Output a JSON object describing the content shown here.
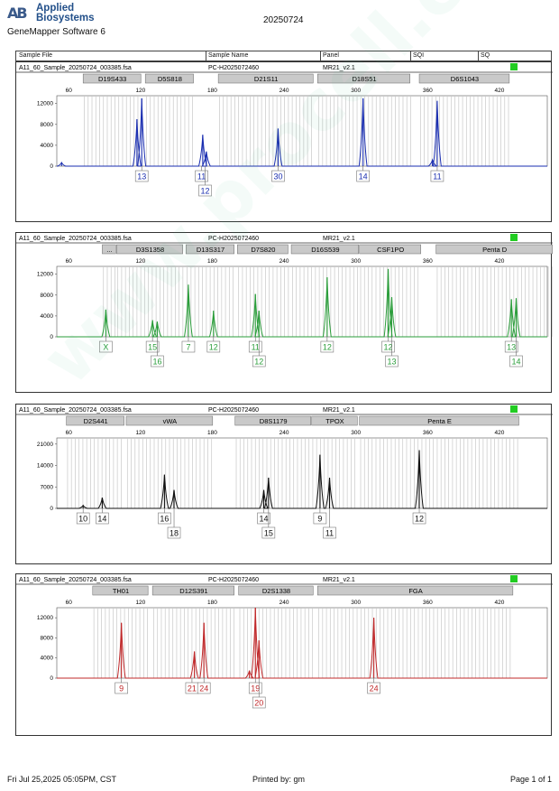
{
  "header": {
    "logo_mark": "AB",
    "logo_line1": "Applied",
    "logo_line2": "Biosystems",
    "app_name": "GeneMapper Software 6",
    "report_date": "20250724"
  },
  "columns": [
    "Sample File",
    "Sample Name",
    "Panel",
    "SQI",
    "SQ"
  ],
  "footer": {
    "timestamp": "Fri Jul 25,2025 05:05PM, CST",
    "printed_by": "Printed by: gm",
    "page": "Page 1 of 1"
  },
  "watermark": "www.procell.com.cn",
  "colors": {
    "blue": "#1a2eb0",
    "green": "#2a9d3a",
    "black": "#111111",
    "red": "#c0282a",
    "status_ok": "#22cc22"
  },
  "chart_data": [
    {
      "type": "line",
      "sample_file": "A11_60_Sample_20250724_003385.fsa",
      "sample_name": "PC-H2025072460",
      "panel": "MR21_v2.1",
      "dye": "blue",
      "x_ticks": [
        60,
        120,
        180,
        240,
        300,
        360,
        420
      ],
      "y_ticks": [
        "0",
        "4000",
        "8000",
        "12000"
      ],
      "xlim": [
        50,
        460
      ],
      "ylim": [
        0,
        13500
      ],
      "loci": [
        {
          "name": "D19S433",
          "start": 72,
          "end": 121
        },
        {
          "name": "D5S818",
          "start": 124,
          "end": 165
        },
        {
          "name": "D21S11",
          "start": 185,
          "end": 265
        },
        {
          "name": "D18S51",
          "start": 268,
          "end": 346
        },
        {
          "name": "D6S1043",
          "start": 353,
          "end": 429
        }
      ],
      "peaks": [
        {
          "x": 54,
          "h": 700
        },
        {
          "x": 117,
          "h": 9000
        },
        {
          "x": 121,
          "h": 13000
        },
        {
          "x": 172,
          "h": 6000
        },
        {
          "x": 175,
          "h": 2800
        },
        {
          "x": 235,
          "h": 7200
        },
        {
          "x": 306,
          "h": 13000
        },
        {
          "x": 368,
          "h": 12500
        },
        {
          "x": 364,
          "h": 1200
        }
      ],
      "alleles": [
        {
          "x": 121,
          "row": 1,
          "label": "13"
        },
        {
          "x": 171,
          "row": 1,
          "label": "11"
        },
        {
          "x": 174,
          "row": 2,
          "label": "12"
        },
        {
          "x": 235,
          "row": 1,
          "label": "30"
        },
        {
          "x": 306,
          "row": 1,
          "label": "14"
        },
        {
          "x": 368,
          "row": 1,
          "label": "11"
        }
      ]
    },
    {
      "type": "line",
      "sample_file": "A11_60_Sample_20250724_003385.fsa",
      "sample_name": "PC-H2025072460",
      "panel": "MR21_v2.1",
      "dye": "green",
      "x_ticks": [
        60,
        120,
        180,
        240,
        300,
        360,
        420
      ],
      "y_ticks": [
        "0",
        "4000",
        "8000",
        "12000"
      ],
      "xlim": [
        50,
        460
      ],
      "ylim": [
        0,
        13500
      ],
      "loci": [
        {
          "name": "...",
          "start": 88,
          "end": 100
        },
        {
          "name": "D3S1358",
          "start": 100,
          "end": 156
        },
        {
          "name": "D13S317",
          "start": 158,
          "end": 199
        },
        {
          "name": "D7S820",
          "start": 201,
          "end": 244
        },
        {
          "name": "D16S539",
          "start": 246,
          "end": 303
        },
        {
          "name": "CSF1PO",
          "start": 303,
          "end": 355
        },
        {
          "name": "Penta D",
          "start": 367,
          "end": 465
        }
      ],
      "peaks": [
        {
          "x": 91,
          "h": 5200
        },
        {
          "x": 130,
          "h": 3200
        },
        {
          "x": 134,
          "h": 2900
        },
        {
          "x": 160,
          "h": 10000
        },
        {
          "x": 181,
          "h": 5000
        },
        {
          "x": 216,
          "h": 8200
        },
        {
          "x": 219,
          "h": 5000
        },
        {
          "x": 276,
          "h": 11400
        },
        {
          "x": 327,
          "h": 13000
        },
        {
          "x": 330,
          "h": 7600
        },
        {
          "x": 430,
          "h": 7200
        },
        {
          "x": 434,
          "h": 7400
        }
      ],
      "alleles": [
        {
          "x": 91,
          "row": 1,
          "label": "X"
        },
        {
          "x": 130,
          "row": 1,
          "label": "15"
        },
        {
          "x": 134,
          "row": 2,
          "label": "16"
        },
        {
          "x": 160,
          "row": 1,
          "label": "7"
        },
        {
          "x": 181,
          "row": 1,
          "label": "12"
        },
        {
          "x": 216,
          "row": 1,
          "label": "11"
        },
        {
          "x": 219,
          "row": 2,
          "label": "12"
        },
        {
          "x": 276,
          "row": 1,
          "label": "12"
        },
        {
          "x": 327,
          "row": 1,
          "label": "12"
        },
        {
          "x": 330,
          "row": 2,
          "label": "13"
        },
        {
          "x": 430,
          "row": 1,
          "label": "13"
        },
        {
          "x": 434,
          "row": 2,
          "label": "14"
        }
      ]
    },
    {
      "type": "line",
      "sample_file": "A11_60_Sample_20250724_003385.fsa",
      "sample_name": "PC-H2025072460",
      "panel": "MR21_v2.1",
      "dye": "black",
      "x_ticks": [
        60,
        120,
        180,
        240,
        300,
        360,
        420
      ],
      "y_ticks": [
        "0",
        "7000",
        "14000",
        "21000"
      ],
      "xlim": [
        50,
        460
      ],
      "ylim": [
        0,
        23000
      ],
      "loci": [
        {
          "name": "D2S441",
          "start": 58,
          "end": 107
        },
        {
          "name": "vWA",
          "start": 108,
          "end": 181
        },
        {
          "name": "D8S1179",
          "start": 199,
          "end": 263
        },
        {
          "name": "TPOX",
          "start": 263,
          "end": 302
        },
        {
          "name": "Penta E",
          "start": 303,
          "end": 437
        }
      ],
      "peaks": [
        {
          "x": 72,
          "h": 1000
        },
        {
          "x": 88,
          "h": 3500
        },
        {
          "x": 140,
          "h": 11000
        },
        {
          "x": 148,
          "h": 6000
        },
        {
          "x": 223,
          "h": 6000
        },
        {
          "x": 227,
          "h": 10000
        },
        {
          "x": 270,
          "h": 17500
        },
        {
          "x": 278,
          "h": 10000
        },
        {
          "x": 353,
          "h": 19000
        }
      ],
      "alleles": [
        {
          "x": 72,
          "row": 1,
          "label": "10"
        },
        {
          "x": 88,
          "row": 1,
          "label": "14"
        },
        {
          "x": 140,
          "row": 1,
          "label": "16"
        },
        {
          "x": 148,
          "row": 2,
          "label": "18"
        },
        {
          "x": 223,
          "row": 1,
          "label": "14"
        },
        {
          "x": 227,
          "row": 2,
          "label": "15"
        },
        {
          "x": 270,
          "row": 1,
          "label": "9"
        },
        {
          "x": 278,
          "row": 2,
          "label": "11"
        },
        {
          "x": 353,
          "row": 1,
          "label": "12"
        }
      ]
    },
    {
      "type": "line",
      "sample_file": "A11_60_Sample_20250724_003385.fsa",
      "sample_name": "PC-H2025072460",
      "panel": "MR21_v2.1",
      "dye": "red",
      "x_ticks": [
        60,
        120,
        180,
        240,
        300,
        360,
        420
      ],
      "y_ticks": [
        "0",
        "4000",
        "8000",
        "12000"
      ],
      "xlim": [
        50,
        460
      ],
      "ylim": [
        0,
        14000
      ],
      "loci": [
        {
          "name": "TH01",
          "start": 80,
          "end": 127
        },
        {
          "name": "D12S391",
          "start": 130,
          "end": 199
        },
        {
          "name": "D2S1338",
          "start": 202,
          "end": 265
        },
        {
          "name": "FGA",
          "start": 268,
          "end": 432
        }
      ],
      "peaks": [
        {
          "x": 104,
          "h": 11000
        },
        {
          "x": 165,
          "h": 5300
        },
        {
          "x": 173,
          "h": 11000
        },
        {
          "x": 216,
          "h": 14000
        },
        {
          "x": 219,
          "h": 7500
        },
        {
          "x": 211,
          "h": 1500
        },
        {
          "x": 315,
          "h": 12000
        }
      ],
      "alleles": [
        {
          "x": 104,
          "row": 1,
          "label": "9"
        },
        {
          "x": 163,
          "row": 1,
          "label": "21"
        },
        {
          "x": 173,
          "row": 1,
          "label": "24"
        },
        {
          "x": 216,
          "row": 1,
          "label": "19"
        },
        {
          "x": 219,
          "row": 2,
          "label": "20"
        },
        {
          "x": 315,
          "row": 1,
          "label": "24"
        }
      ]
    }
  ]
}
